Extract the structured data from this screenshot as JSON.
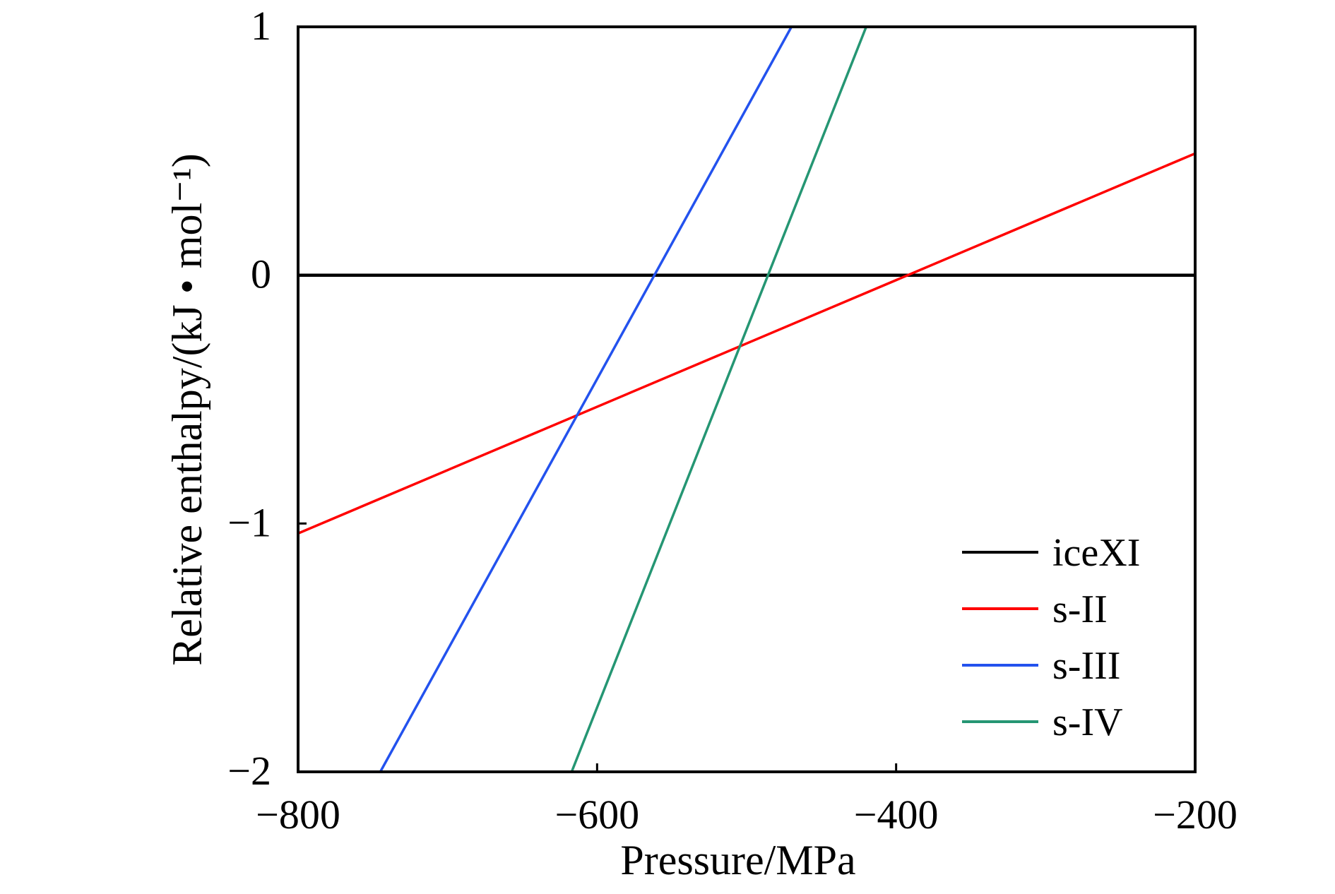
{
  "chart_data": {
    "type": "line",
    "title": "",
    "xlabel": "Pressure/MPa",
    "ylabel": "Relative enthalpy/(kJ • mol⁻¹)",
    "xlim": [
      -800,
      -200
    ],
    "ylim": [
      -2,
      1
    ],
    "x_ticks": [
      {
        "value": -800,
        "label": "−800"
      },
      {
        "value": -600,
        "label": "−600"
      },
      {
        "value": -400,
        "label": "−400"
      },
      {
        "value": -200,
        "label": "−200"
      }
    ],
    "y_ticks": [
      {
        "value": 1,
        "label": "1"
      },
      {
        "value": 0,
        "label": "0"
      },
      {
        "value": -1,
        "label": "−1"
      },
      {
        "value": -2,
        "label": "−2"
      }
    ],
    "grid": false,
    "legend_position": "bottom-right",
    "series": [
      {
        "name": "iceXI",
        "color": "#000000",
        "x": [
          -800,
          -200
        ],
        "y": [
          0,
          0
        ]
      },
      {
        "name": "s-II",
        "color": "#ff0000",
        "x": [
          -800,
          -200
        ],
        "y": [
          -1.04,
          0.49
        ]
      },
      {
        "name": "s-III",
        "color": "#2352ee",
        "x": [
          -745,
          -470
        ],
        "y": [
          -2.0,
          1.0
        ]
      },
      {
        "name": "s-IV",
        "color": "#259673",
        "x": [
          -617,
          -420
        ],
        "y": [
          -2.0,
          1.0
        ]
      }
    ]
  }
}
